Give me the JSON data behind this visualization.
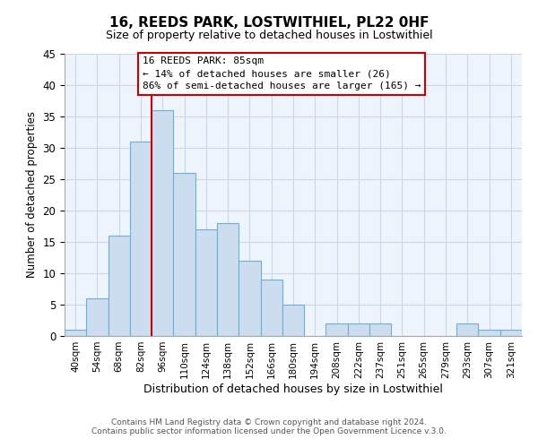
{
  "title": "16, REEDS PARK, LOSTWITHIEL, PL22 0HF",
  "subtitle": "Size of property relative to detached houses in Lostwithiel",
  "xlabel": "Distribution of detached houses by size in Lostwithiel",
  "ylabel": "Number of detached properties",
  "bar_labels": [
    "40sqm",
    "54sqm",
    "68sqm",
    "82sqm",
    "96sqm",
    "110sqm",
    "124sqm",
    "138sqm",
    "152sqm",
    "166sqm",
    "180sqm",
    "194sqm",
    "208sqm",
    "222sqm",
    "237sqm",
    "251sqm",
    "265sqm",
    "279sqm",
    "293sqm",
    "307sqm",
    "321sqm"
  ],
  "bar_values": [
    1,
    6,
    16,
    31,
    36,
    26,
    17,
    18,
    12,
    9,
    5,
    0,
    2,
    2,
    2,
    0,
    0,
    0,
    2,
    1,
    1
  ],
  "bar_color": "#ccddf0",
  "bar_edge_color": "#6baed6",
  "vline_x": 3.5,
  "vline_color": "#cc0000",
  "ylim": [
    0,
    45
  ],
  "yticks": [
    0,
    5,
    10,
    15,
    20,
    25,
    30,
    35,
    40,
    45
  ],
  "annotation_title": "16 REEDS PARK: 85sqm",
  "annotation_line1": "← 14% of detached houses are smaller (26)",
  "annotation_line2": "86% of semi-detached houses are larger (165) →",
  "footer_line1": "Contains HM Land Registry data © Crown copyright and database right 2024.",
  "footer_line2": "Contains public sector information licensed under the Open Government Licence v.3.0.",
  "background_color": "#ffffff",
  "grid_color": "#c8d8e8"
}
